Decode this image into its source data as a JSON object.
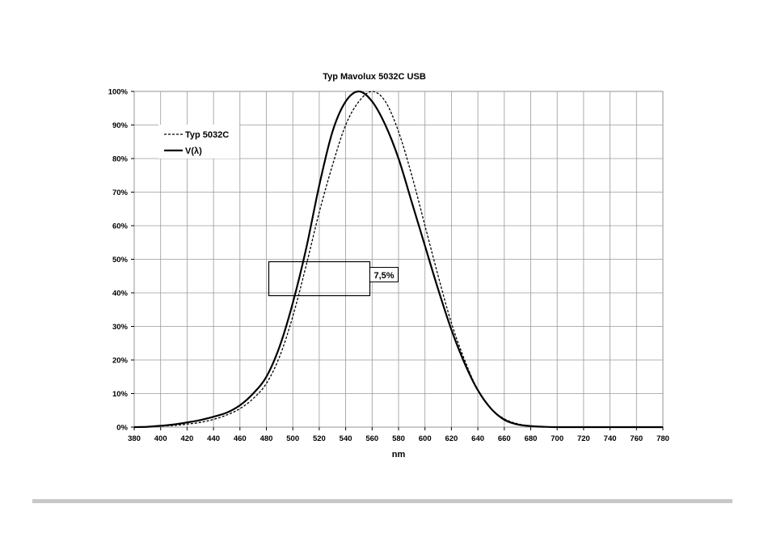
{
  "chart_data": {
    "type": "line",
    "title": "Typ Mavolux 5032C USB",
    "xlabel": "nm",
    "ylabel": "",
    "xlim": [
      380,
      780
    ],
    "ylim": [
      0,
      100
    ],
    "x_ticks": [
      380,
      400,
      420,
      440,
      460,
      480,
      500,
      520,
      540,
      560,
      580,
      600,
      620,
      640,
      660,
      680,
      700,
      720,
      740,
      760,
      780
    ],
    "y_ticks": [
      0,
      10,
      20,
      30,
      40,
      50,
      60,
      70,
      80,
      90,
      100
    ],
    "y_tick_labels": [
      "0%",
      "10%",
      "20%",
      "30%",
      "40%",
      "50%",
      "60%",
      "70%",
      "80%",
      "90%",
      "100%"
    ],
    "grid": true,
    "legend_position": "top-left",
    "annotation": "7,5%",
    "series": [
      {
        "name": "Typ 5032C",
        "style": "dashed",
        "x": [
          380,
          390,
          400,
          410,
          420,
          430,
          440,
          450,
          460,
          470,
          480,
          490,
          500,
          510,
          520,
          530,
          540,
          550,
          560,
          570,
          580,
          590,
          600,
          610,
          620,
          630,
          640,
          650,
          660,
          670,
          680,
          690,
          700,
          720,
          740,
          760,
          780
        ],
        "y": [
          0,
          0.1,
          0.3,
          0.5,
          0.9,
          1.4,
          2.3,
          3.6,
          5.5,
          8.5,
          13,
          21,
          33,
          48,
          64,
          78,
          90,
          97,
          100,
          97,
          88,
          75,
          60,
          45,
          31,
          20,
          11,
          5.5,
          2.5,
          1,
          0.4,
          0.15,
          0,
          0,
          0,
          0,
          0
        ]
      },
      {
        "name": "V(λ)",
        "style": "solid",
        "x": [
          380,
          390,
          400,
          410,
          420,
          430,
          440,
          450,
          460,
          470,
          480,
          490,
          500,
          510,
          520,
          530,
          540,
          550,
          560,
          570,
          580,
          590,
          600,
          610,
          620,
          630,
          640,
          650,
          660,
          670,
          680,
          690,
          700,
          720,
          740,
          760,
          780
        ],
        "y": [
          0,
          0.1,
          0.4,
          0.8,
          1.4,
          2.1,
          3.1,
          4.3,
          6.5,
          10,
          15,
          24,
          37,
          53,
          72,
          88,
          97,
          100,
          97,
          90,
          80,
          67,
          54,
          41,
          29,
          19,
          11,
          5.5,
          2.2,
          0.8,
          0.3,
          0.1,
          0,
          0,
          0,
          0,
          0
        ]
      }
    ]
  }
}
